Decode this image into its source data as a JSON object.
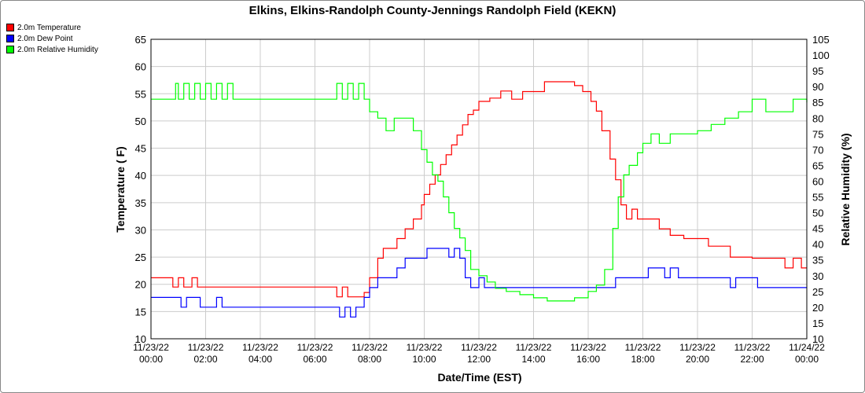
{
  "chart_data": {
    "type": "line",
    "title": "Elkins, Elkins-Randolph County-Jennings Randolph Field (KEKN)",
    "xlabel": "Date/Time (EST)",
    "ylabel_left": "Temperature ( F)",
    "ylabel_right": "Relative Humidity (%)",
    "ylim_left": [
      10,
      65
    ],
    "ylim_right": [
      10,
      105
    ],
    "xlim_hours": [
      0,
      24
    ],
    "grid": true,
    "legend_position": "top-left",
    "left_ticks": [
      10,
      15,
      20,
      25,
      30,
      35,
      40,
      45,
      50,
      55,
      60,
      65
    ],
    "right_ticks": [
      10,
      15,
      20,
      25,
      30,
      35,
      40,
      45,
      50,
      55,
      60,
      65,
      70,
      75,
      80,
      85,
      90,
      95,
      100,
      105
    ],
    "x_ticks": [
      {
        "date": "11/23/22",
        "time": "00:00"
      },
      {
        "date": "11/23/22",
        "time": "02:00"
      },
      {
        "date": "11/23/22",
        "time": "04:00"
      },
      {
        "date": "11/23/22",
        "time": "06:00"
      },
      {
        "date": "11/23/22",
        "time": "08:00"
      },
      {
        "date": "11/23/22",
        "time": "10:00"
      },
      {
        "date": "11/23/22",
        "time": "12:00"
      },
      {
        "date": "11/23/22",
        "time": "14:00"
      },
      {
        "date": "11/23/22",
        "time": "16:00"
      },
      {
        "date": "11/23/22",
        "time": "18:00"
      },
      {
        "date": "11/23/22",
        "time": "20:00"
      },
      {
        "date": "11/23/22",
        "time": "22:00"
      },
      {
        "date": "11/24/22",
        "time": "00:00"
      }
    ],
    "series": [
      {
        "name": "2.0m Temperature",
        "color": "#ff0000",
        "axis": "left",
        "points": [
          [
            0,
            21.2
          ],
          [
            0.7,
            21.2
          ],
          [
            0.8,
            19.5
          ],
          [
            1.0,
            21.2
          ],
          [
            1.2,
            19.5
          ],
          [
            1.5,
            21.2
          ],
          [
            1.7,
            19.5
          ],
          [
            2.0,
            19.5
          ],
          [
            2.2,
            19.5
          ],
          [
            3,
            19.5
          ],
          [
            4,
            19.5
          ],
          [
            5,
            19.5
          ],
          [
            6,
            19.5
          ],
          [
            6.7,
            19.5
          ],
          [
            6.8,
            17.7
          ],
          [
            7.0,
            19.5
          ],
          [
            7.2,
            17.7
          ],
          [
            7.5,
            17.7
          ],
          [
            7.8,
            18.5
          ],
          [
            8.0,
            21.2
          ],
          [
            8.3,
            24.8
          ],
          [
            8.5,
            26.6
          ],
          [
            8.8,
            26.6
          ],
          [
            9.0,
            28.4
          ],
          [
            9.3,
            30.2
          ],
          [
            9.6,
            32.0
          ],
          [
            9.9,
            34.6
          ],
          [
            10.0,
            36.5
          ],
          [
            10.2,
            38.4
          ],
          [
            10.4,
            40.1
          ],
          [
            10.6,
            42.0
          ],
          [
            10.8,
            43.8
          ],
          [
            11.0,
            45.6
          ],
          [
            11.2,
            47.4
          ],
          [
            11.4,
            49.3
          ],
          [
            11.6,
            51.2
          ],
          [
            11.8,
            52.0
          ],
          [
            12.0,
            53.6
          ],
          [
            12.4,
            54.2
          ],
          [
            12.8,
            55.5
          ],
          [
            13.2,
            54.0
          ],
          [
            13.6,
            55.4
          ],
          [
            14.0,
            55.4
          ],
          [
            14.4,
            57.2
          ],
          [
            15.0,
            57.2
          ],
          [
            15.5,
            56.5
          ],
          [
            15.8,
            55.4
          ],
          [
            16.1,
            53.6
          ],
          [
            16.3,
            51.8
          ],
          [
            16.5,
            48.2
          ],
          [
            16.8,
            43.0
          ],
          [
            17.0,
            39.2
          ],
          [
            17.2,
            34.6
          ],
          [
            17.4,
            32.0
          ],
          [
            17.6,
            33.8
          ],
          [
            17.8,
            32.0
          ],
          [
            18.2,
            32.0
          ],
          [
            18.6,
            30.2
          ],
          [
            19.0,
            29.0
          ],
          [
            19.5,
            28.4
          ],
          [
            20.0,
            28.4
          ],
          [
            20.4,
            27.0
          ],
          [
            20.8,
            27.0
          ],
          [
            21.2,
            25.0
          ],
          [
            22.0,
            24.8
          ],
          [
            22.6,
            24.8
          ],
          [
            23.0,
            24.8
          ],
          [
            23.2,
            23.0
          ],
          [
            23.5,
            24.8
          ],
          [
            23.8,
            23.0
          ],
          [
            24.0,
            23.0
          ]
        ]
      },
      {
        "name": "2.0m Dew Point",
        "color": "#0000ff",
        "axis": "left",
        "points": [
          [
            0,
            17.6
          ],
          [
            0.9,
            17.6
          ],
          [
            1.1,
            15.8
          ],
          [
            1.3,
            17.6
          ],
          [
            1.6,
            17.6
          ],
          [
            1.8,
            15.8
          ],
          [
            2.2,
            15.8
          ],
          [
            2.4,
            17.6
          ],
          [
            2.6,
            15.8
          ],
          [
            3.0,
            15.8
          ],
          [
            4,
            15.8
          ],
          [
            5,
            15.8
          ],
          [
            6,
            15.8
          ],
          [
            6.7,
            15.8
          ],
          [
            6.9,
            14.0
          ],
          [
            7.1,
            15.8
          ],
          [
            7.3,
            14.0
          ],
          [
            7.5,
            15.8
          ],
          [
            7.8,
            17.6
          ],
          [
            8.0,
            19.4
          ],
          [
            8.3,
            21.2
          ],
          [
            8.7,
            21.2
          ],
          [
            9.0,
            23.0
          ],
          [
            9.3,
            24.8
          ],
          [
            9.8,
            24.8
          ],
          [
            10.1,
            26.6
          ],
          [
            10.6,
            26.6
          ],
          [
            10.9,
            25.0
          ],
          [
            11.1,
            26.6
          ],
          [
            11.3,
            24.8
          ],
          [
            11.5,
            21.2
          ],
          [
            11.7,
            19.4
          ],
          [
            12.0,
            21.2
          ],
          [
            12.2,
            19.4
          ],
          [
            12.5,
            19.4
          ],
          [
            13.0,
            19.4
          ],
          [
            14,
            19.4
          ],
          [
            15,
            19.4
          ],
          [
            16,
            19.4
          ],
          [
            16.8,
            19.4
          ],
          [
            17.0,
            21.2
          ],
          [
            18.0,
            21.2
          ],
          [
            18.2,
            23.0
          ],
          [
            18.6,
            23.0
          ],
          [
            18.8,
            21.2
          ],
          [
            19.0,
            23.0
          ],
          [
            19.3,
            21.2
          ],
          [
            20,
            21.2
          ],
          [
            21,
            21.2
          ],
          [
            21.2,
            19.4
          ],
          [
            21.4,
            21.2
          ],
          [
            22.0,
            21.2
          ],
          [
            22.2,
            19.4
          ],
          [
            23,
            19.4
          ],
          [
            24,
            19.4
          ]
        ]
      },
      {
        "name": "2.0m Relative Humidity",
        "color": "#00ff00",
        "axis": "right",
        "points": [
          [
            0,
            86
          ],
          [
            0.8,
            86
          ],
          [
            0.9,
            91
          ],
          [
            1.0,
            86
          ],
          [
            1.2,
            91
          ],
          [
            1.4,
            86
          ],
          [
            1.6,
            91
          ],
          [
            1.8,
            86
          ],
          [
            2.0,
            91
          ],
          [
            2.2,
            86
          ],
          [
            2.4,
            91
          ],
          [
            2.6,
            86
          ],
          [
            2.8,
            91
          ],
          [
            3.0,
            86
          ],
          [
            4,
            86
          ],
          [
            5,
            86
          ],
          [
            6,
            86
          ],
          [
            6.6,
            86
          ],
          [
            6.8,
            91
          ],
          [
            7.0,
            86
          ],
          [
            7.2,
            91
          ],
          [
            7.4,
            86
          ],
          [
            7.6,
            91
          ],
          [
            7.8,
            86
          ],
          [
            8.0,
            82
          ],
          [
            8.3,
            80
          ],
          [
            8.6,
            76
          ],
          [
            8.9,
            80
          ],
          [
            9.3,
            80
          ],
          [
            9.6,
            76
          ],
          [
            9.9,
            70
          ],
          [
            10.1,
            66
          ],
          [
            10.3,
            62
          ],
          [
            10.5,
            60
          ],
          [
            10.7,
            55
          ],
          [
            10.9,
            50
          ],
          [
            11.1,
            45
          ],
          [
            11.3,
            42
          ],
          [
            11.5,
            38
          ],
          [
            11.7,
            32
          ],
          [
            12.0,
            30
          ],
          [
            12.3,
            28
          ],
          [
            12.6,
            26
          ],
          [
            13.0,
            25
          ],
          [
            13.5,
            24
          ],
          [
            14.0,
            23
          ],
          [
            14.5,
            22
          ],
          [
            15.0,
            22
          ],
          [
            15.5,
            23
          ],
          [
            16.0,
            25
          ],
          [
            16.3,
            27
          ],
          [
            16.6,
            32
          ],
          [
            16.9,
            45
          ],
          [
            17.1,
            55
          ],
          [
            17.3,
            62
          ],
          [
            17.5,
            65
          ],
          [
            17.8,
            69
          ],
          [
            18.0,
            72
          ],
          [
            18.3,
            75
          ],
          [
            18.6,
            72
          ],
          [
            19.0,
            75
          ],
          [
            19.5,
            75
          ],
          [
            20.0,
            76
          ],
          [
            20.5,
            78
          ],
          [
            21.0,
            80
          ],
          [
            21.5,
            82
          ],
          [
            22.0,
            86
          ],
          [
            22.5,
            82
          ],
          [
            23.0,
            82
          ],
          [
            23.5,
            86
          ],
          [
            24.0,
            85
          ]
        ]
      }
    ]
  }
}
